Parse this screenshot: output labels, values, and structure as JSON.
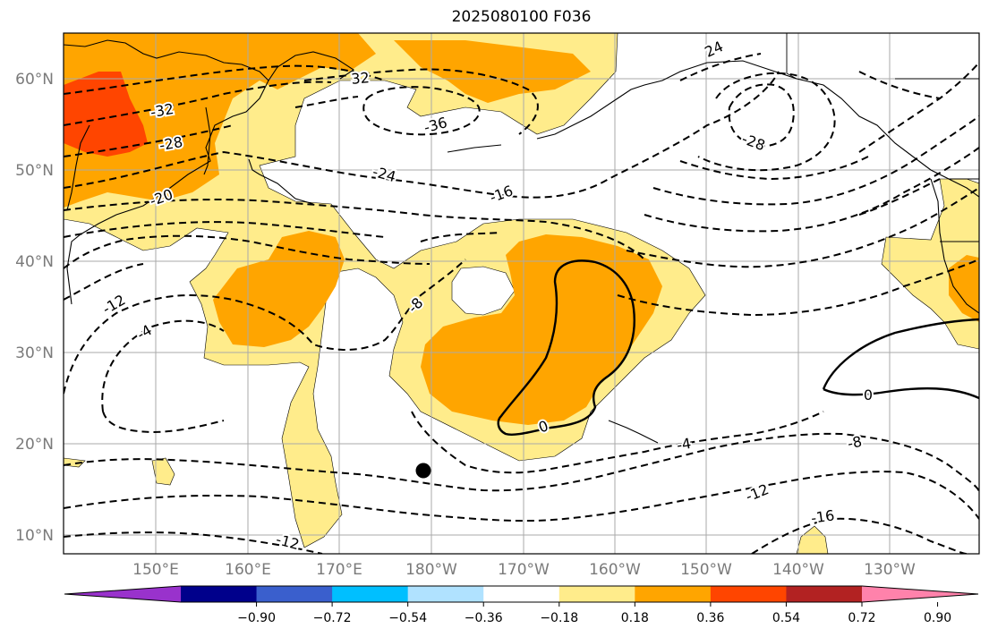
{
  "title": "2025080100 F036",
  "lat_labels": [
    "60°N",
    "50°N",
    "40°N",
    "30°N",
    "20°N",
    "10°N"
  ],
  "lon_labels": [
    "150°E",
    "160°E",
    "170°E",
    "180°W",
    "170°W",
    "160°W",
    "150°W",
    "140°W",
    "130°W"
  ],
  "colorbar": {
    "tick_labels": [
      "−0.90",
      "−0.72",
      "−0.54",
      "−0.36",
      "−0.18",
      "0.18",
      "0.36",
      "0.54",
      "0.72",
      "0.90"
    ],
    "colors": [
      "#9932cc",
      "#00008b",
      "#3a5fcd",
      "#00bfff",
      "#b0e2ff",
      "#ffffff",
      "#ffec8b",
      "#ffa500",
      "#ff4500",
      "#b22222",
      "#ff82ab"
    ]
  },
  "contour_labels": [
    "32",
    "24",
    "-36",
    "-28",
    "-32",
    "-28",
    "-24",
    "-20",
    "-16",
    "-12",
    "-4",
    "-8",
    "0",
    "0",
    "-4",
    "-8",
    "-12",
    "-16",
    "-12"
  ],
  "marker": {
    "name": "black-dot"
  }
}
